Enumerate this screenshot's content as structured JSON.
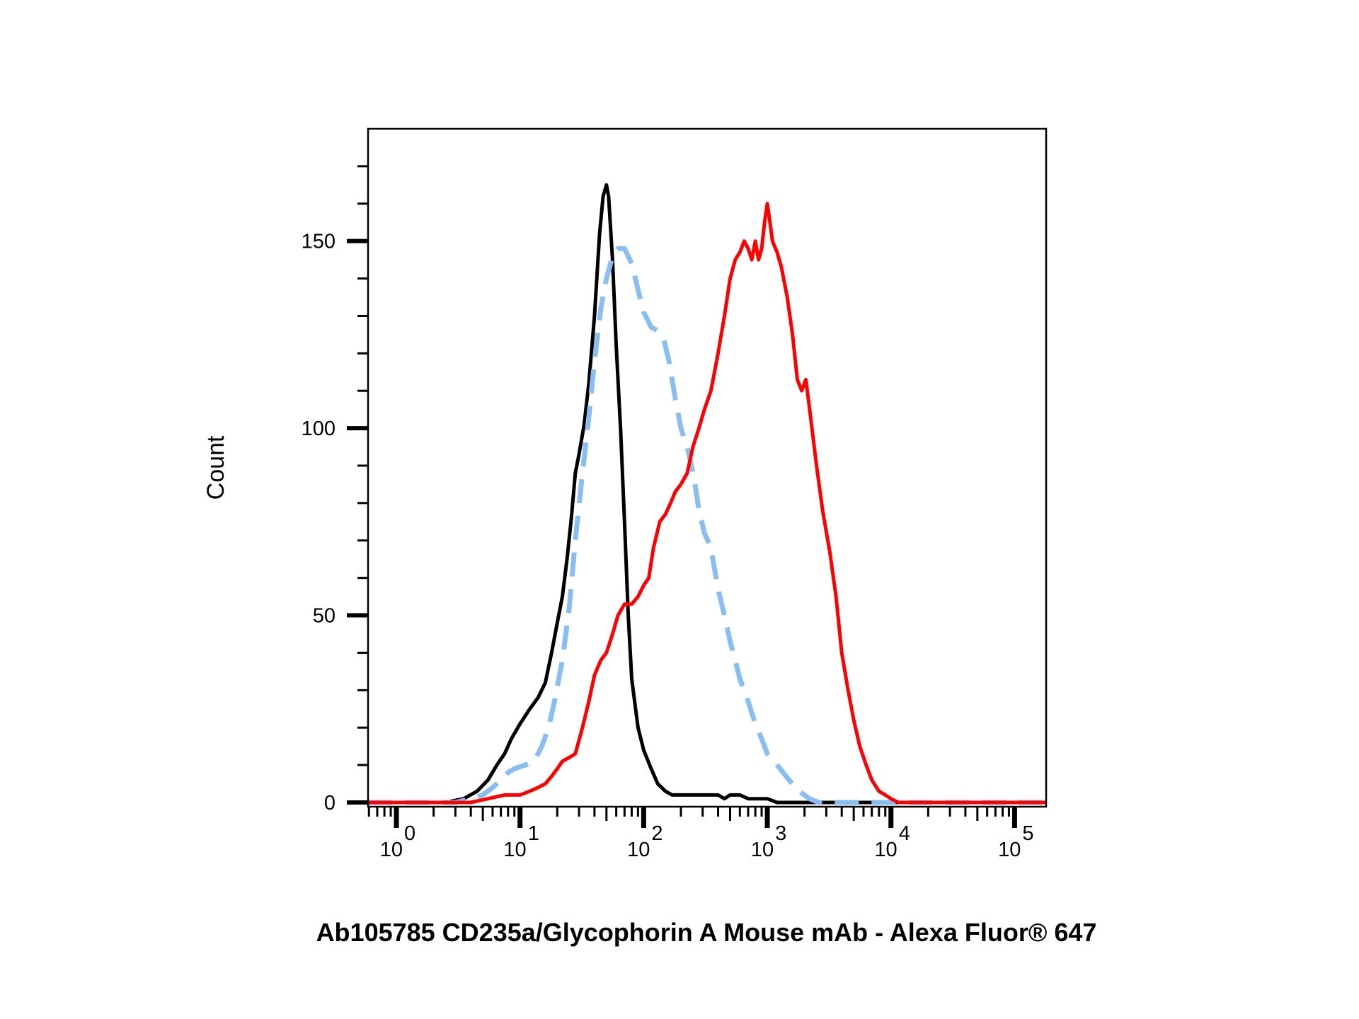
{
  "chart_data": {
    "type": "line",
    "title": "",
    "xlabel": "Ab105785 CD235a/Glycophorin A Mouse mAb - Alexa Fluor® 647",
    "ylabel": "Count",
    "x_scale": "log",
    "xlim": [
      0.59,
      180000
    ],
    "ylim": [
      0,
      180
    ],
    "x_ticks": [
      {
        "base": "10",
        "exp": "0",
        "value": 1
      },
      {
        "base": "10",
        "exp": "1",
        "value": 10
      },
      {
        "base": "10",
        "exp": "2",
        "value": 100
      },
      {
        "base": "10",
        "exp": "3",
        "value": 1000
      },
      {
        "base": "10",
        "exp": "4",
        "value": 10000
      },
      {
        "base": "10",
        "exp": "5",
        "value": 100000
      }
    ],
    "y_ticks": [
      {
        "label": "0",
        "value": 0
      },
      {
        "label": "50",
        "value": 50
      },
      {
        "label": "100",
        "value": 100
      },
      {
        "label": "150",
        "value": 150
      }
    ],
    "grid": false,
    "legend": "none",
    "series": [
      {
        "color": "#000000",
        "style": "solid",
        "points": [
          [
            0.59,
            0
          ],
          [
            2.5,
            0
          ],
          [
            3.5,
            1
          ],
          [
            4.5,
            3
          ],
          [
            5.5,
            6
          ],
          [
            6.5,
            10
          ],
          [
            7.5,
            13
          ],
          [
            8.5,
            17
          ],
          [
            10,
            21
          ],
          [
            12,
            25
          ],
          [
            14,
            28
          ],
          [
            16,
            32
          ],
          [
            18,
            40
          ],
          [
            20,
            48
          ],
          [
            22,
            55
          ],
          [
            24,
            65
          ],
          [
            26,
            76
          ],
          [
            28,
            88
          ],
          [
            30,
            93
          ],
          [
            33,
            101
          ],
          [
            36,
            112
          ],
          [
            40,
            130
          ],
          [
            44,
            152
          ],
          [
            47,
            162
          ],
          [
            50,
            165
          ],
          [
            52,
            162
          ],
          [
            56,
            145
          ],
          [
            60,
            122
          ],
          [
            65,
            100
          ],
          [
            70,
            75
          ],
          [
            75,
            50
          ],
          [
            80,
            33
          ],
          [
            90,
            20
          ],
          [
            100,
            14
          ],
          [
            115,
            9
          ],
          [
            130,
            5
          ],
          [
            150,
            3
          ],
          [
            170,
            2
          ],
          [
            200,
            2
          ],
          [
            300,
            2
          ],
          [
            400,
            2
          ],
          [
            450,
            1
          ],
          [
            500,
            2
          ],
          [
            600,
            2
          ],
          [
            700,
            1
          ],
          [
            800,
            1
          ],
          [
            1000,
            1
          ],
          [
            1200,
            0
          ],
          [
            1500,
            0
          ],
          [
            180000,
            0
          ]
        ]
      },
      {
        "color": "#88bff0",
        "style": "dashed",
        "points": [
          [
            0.59,
            0
          ],
          [
            3,
            0
          ],
          [
            4,
            1
          ],
          [
            5,
            2
          ],
          [
            6,
            4
          ],
          [
            7,
            6
          ],
          [
            8,
            8
          ],
          [
            9,
            9
          ],
          [
            11,
            10
          ],
          [
            13,
            11
          ],
          [
            15,
            15
          ],
          [
            17,
            20
          ],
          [
            19,
            27
          ],
          [
            22,
            38
          ],
          [
            25,
            52
          ],
          [
            28,
            70
          ],
          [
            32,
            88
          ],
          [
            36,
            103
          ],
          [
            40,
            118
          ],
          [
            45,
            132
          ],
          [
            50,
            140
          ],
          [
            55,
            145
          ],
          [
            62,
            148
          ],
          [
            70,
            148
          ],
          [
            80,
            144
          ],
          [
            90,
            137
          ],
          [
            100,
            131
          ],
          [
            115,
            127
          ],
          [
            130,
            126
          ],
          [
            145,
            124
          ],
          [
            160,
            118
          ],
          [
            180,
            108
          ],
          [
            200,
            100
          ],
          [
            225,
            95
          ],
          [
            255,
            87
          ],
          [
            280,
            78
          ],
          [
            310,
            72
          ],
          [
            350,
            68
          ],
          [
            400,
            57
          ],
          [
            450,
            50
          ],
          [
            500,
            43
          ],
          [
            550,
            38
          ],
          [
            600,
            33
          ],
          [
            700,
            27
          ],
          [
            800,
            21
          ],
          [
            900,
            17
          ],
          [
            1000,
            13
          ],
          [
            1200,
            10
          ],
          [
            1500,
            6
          ],
          [
            1800,
            3
          ],
          [
            2200,
            1
          ],
          [
            2600,
            0
          ],
          [
            180000,
            0
          ]
        ]
      },
      {
        "color": "#ff0000",
        "style": "solid",
        "points": [
          [
            0.59,
            0
          ],
          [
            4,
            0
          ],
          [
            5.5,
            1
          ],
          [
            7.5,
            2
          ],
          [
            10,
            2
          ],
          [
            12,
            3
          ],
          [
            14,
            4
          ],
          [
            16,
            5
          ],
          [
            18,
            7
          ],
          [
            20,
            9
          ],
          [
            22,
            11
          ],
          [
            25,
            12
          ],
          [
            28,
            13
          ],
          [
            32,
            20
          ],
          [
            36,
            27
          ],
          [
            40,
            34
          ],
          [
            45,
            38
          ],
          [
            50,
            40
          ],
          [
            56,
            45
          ],
          [
            62,
            50
          ],
          [
            70,
            53
          ],
          [
            80,
            53
          ],
          [
            90,
            55
          ],
          [
            100,
            58
          ],
          [
            110,
            60
          ],
          [
            120,
            68
          ],
          [
            135,
            75
          ],
          [
            150,
            77
          ],
          [
            165,
            80
          ],
          [
            180,
            83
          ],
          [
            200,
            85
          ],
          [
            225,
            88
          ],
          [
            250,
            95
          ],
          [
            280,
            100
          ],
          [
            310,
            105
          ],
          [
            350,
            110
          ],
          [
            400,
            120
          ],
          [
            450,
            130
          ],
          [
            500,
            140
          ],
          [
            550,
            145
          ],
          [
            600,
            147
          ],
          [
            650,
            150
          ],
          [
            700,
            148
          ],
          [
            750,
            145
          ],
          [
            800,
            150
          ],
          [
            850,
            145
          ],
          [
            900,
            148
          ],
          [
            950,
            155
          ],
          [
            1000,
            160
          ],
          [
            1050,
            155
          ],
          [
            1100,
            150
          ],
          [
            1200,
            147
          ],
          [
            1300,
            143
          ],
          [
            1450,
            135
          ],
          [
            1600,
            125
          ],
          [
            1750,
            113
          ],
          [
            1900,
            110
          ],
          [
            2050,
            113
          ],
          [
            2200,
            105
          ],
          [
            2500,
            90
          ],
          [
            2800,
            78
          ],
          [
            3200,
            67
          ],
          [
            3600,
            55
          ],
          [
            4000,
            40
          ],
          [
            4500,
            30
          ],
          [
            5000,
            22
          ],
          [
            5600,
            15
          ],
          [
            6300,
            10
          ],
          [
            7000,
            6
          ],
          [
            8000,
            3
          ],
          [
            9000,
            2
          ],
          [
            10000,
            1
          ],
          [
            11500,
            0
          ],
          [
            180000,
            0
          ]
        ]
      }
    ]
  }
}
